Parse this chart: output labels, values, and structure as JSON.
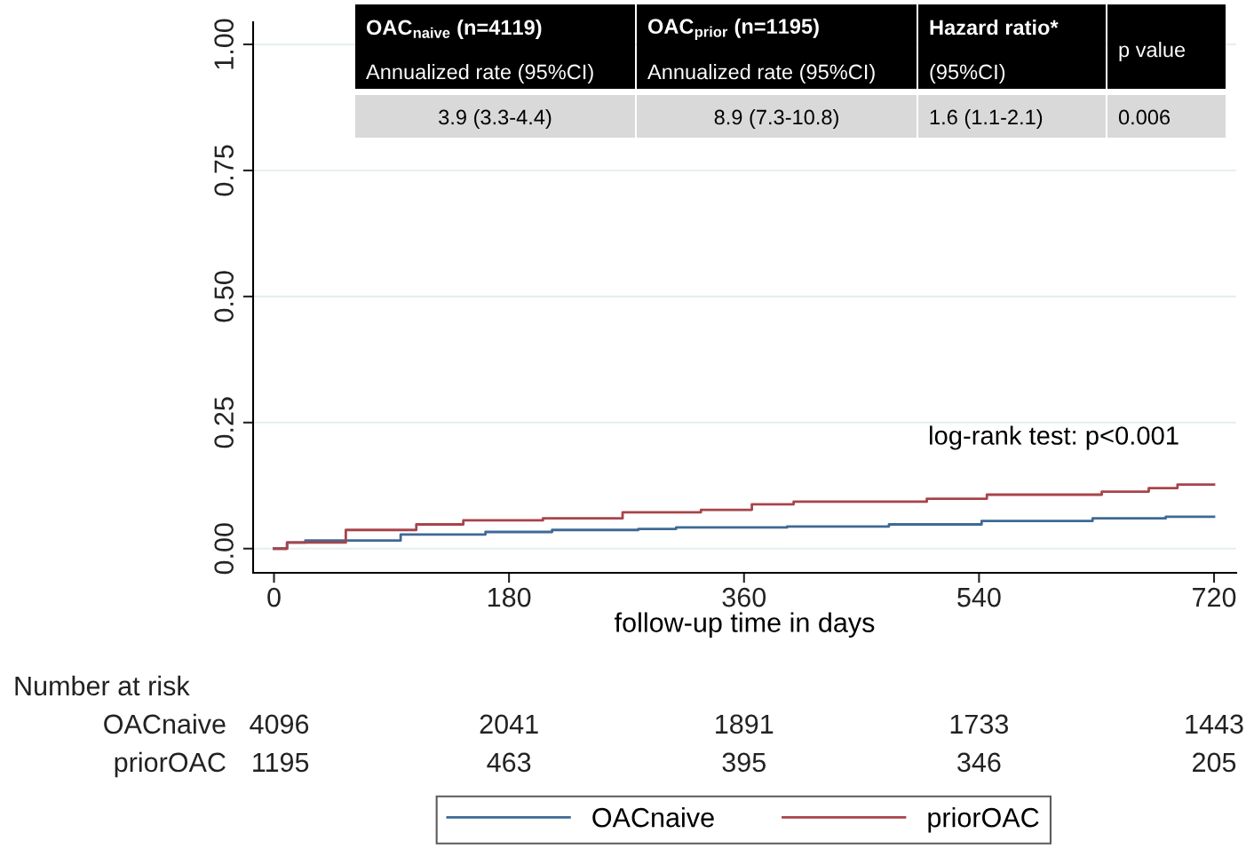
{
  "chart_data": {
    "type": "step",
    "xlabel": "follow-up time in days",
    "xlim": [
      -16,
      737
    ],
    "xticks": [
      0,
      180,
      360,
      540,
      720
    ],
    "ylim": [
      -0.048,
      1.044
    ],
    "yticks": [
      {
        "value": 0,
        "label": "0.00"
      },
      {
        "value": 0.25,
        "label": "0.25"
      },
      {
        "value": 0.5,
        "label": "0.50"
      },
      {
        "value": 0.75,
        "label": "0.75"
      },
      {
        "value": 1,
        "label": "1.00"
      }
    ],
    "grid": "y",
    "legend": "bottom",
    "series": [
      {
        "name": "OACnaive",
        "color": "#3e6a94",
        "x": [
          0,
          10,
          24,
          97,
          162,
          213,
          279,
          308,
          393,
          471,
          542,
          627,
          683,
          720
        ],
        "values": [
          0,
          0.012,
          0.016,
          0.028,
          0.033,
          0.037,
          0.039,
          0.042,
          0.044,
          0.048,
          0.055,
          0.06,
          0.063,
          0.063
        ]
      },
      {
        "name": "priorOAC",
        "color": "#a8444a",
        "x": [
          0,
          10,
          55,
          109,
          145,
          206,
          267,
          327,
          366,
          398,
          500,
          546,
          634,
          670,
          692,
          720
        ],
        "values": [
          0,
          0.012,
          0.037,
          0.048,
          0.056,
          0.06,
          0.072,
          0.077,
          0.088,
          0.093,
          0.099,
          0.107,
          0.113,
          0.12,
          0.127,
          0.127
        ]
      }
    ],
    "annotations": [
      "OAC$_{naive}$ (n=4119)",
      "Annualized rate (95%CI)",
      "OAC$_{prior}$ (n=1195)",
      "Annualized rate (95%CI)",
      "Hazard ratio*",
      "(95%CI)",
      "p value",
      "3.9 (3.3-4.4)",
      "8.9 (7.3-10.8)",
      "1.6 (1.1-2.1)",
      "0.006",
      "log-rank test: p<0.001",
      "Number at risk",
      "OACnaive",
      "4096",
      "2041",
      "1891",
      "1733",
      "1443",
      "priorOAC",
      "1195",
      "463",
      "395",
      "346",
      "205"
    ]
  }
}
